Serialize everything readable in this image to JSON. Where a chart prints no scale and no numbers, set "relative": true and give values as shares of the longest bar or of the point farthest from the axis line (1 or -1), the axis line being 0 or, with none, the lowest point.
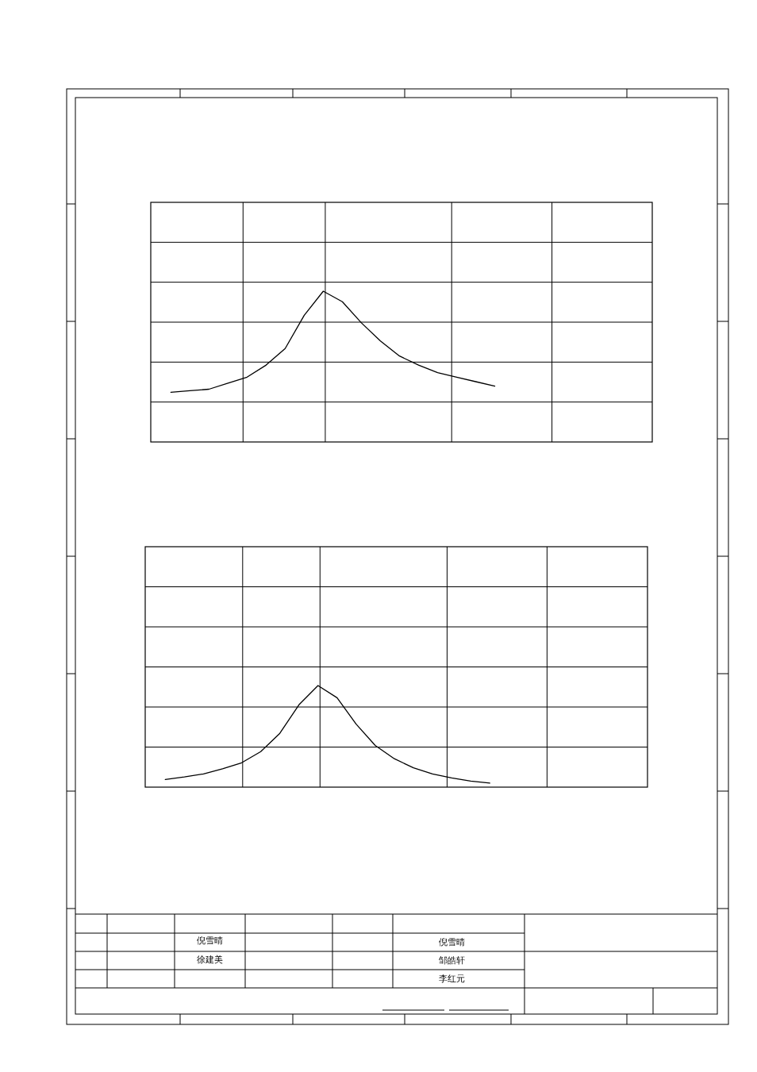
{
  "chart_data": [
    {
      "type": "line",
      "relative": true,
      "grid": true,
      "categories": [
        null,
        null,
        null,
        null,
        null,
        null,
        null,
        null,
        null,
        null,
        null,
        null,
        null,
        null,
        null,
        null,
        null,
        null,
        null,
        null,
        null,
        null,
        null,
        null,
        null,
        null
      ],
      "series": [
        {
          "color": "#000000",
          "values": [
            0.33,
            0.34,
            0.35,
            0.39,
            0.43,
            0.51,
            0.62,
            0.84,
            1,
            0.93,
            0.79,
            0.67,
            0.57,
            0.51,
            0.46,
            0.43,
            0.4,
            0.37,
            null,
            null,
            null,
            null,
            null,
            null,
            null,
            null
          ]
        }
      ]
    },
    {
      "type": "line",
      "relative": true,
      "grid": true,
      "categories": [
        null,
        null,
        null,
        null,
        null,
        null,
        null,
        null,
        null,
        null,
        null,
        null,
        null,
        null,
        null,
        null,
        null,
        null,
        null,
        null,
        null,
        null,
        null,
        null,
        null,
        null
      ],
      "series": [
        {
          "color": "#000000",
          "values": [
            0.075,
            0.1,
            0.13,
            0.18,
            0.24,
            0.35,
            0.53,
            0.81,
            1,
            0.88,
            0.62,
            0.41,
            0.28,
            0.19,
            0.13,
            0.09,
            0.06,
            0.04,
            null,
            null,
            null,
            null,
            null,
            null,
            null,
            null
          ]
        }
      ],
      "annotations": [
        "倪雪晴",
        "徐建美",
        "倪雪晴",
        "邹皓轩",
        "李红元"
      ]
    }
  ]
}
